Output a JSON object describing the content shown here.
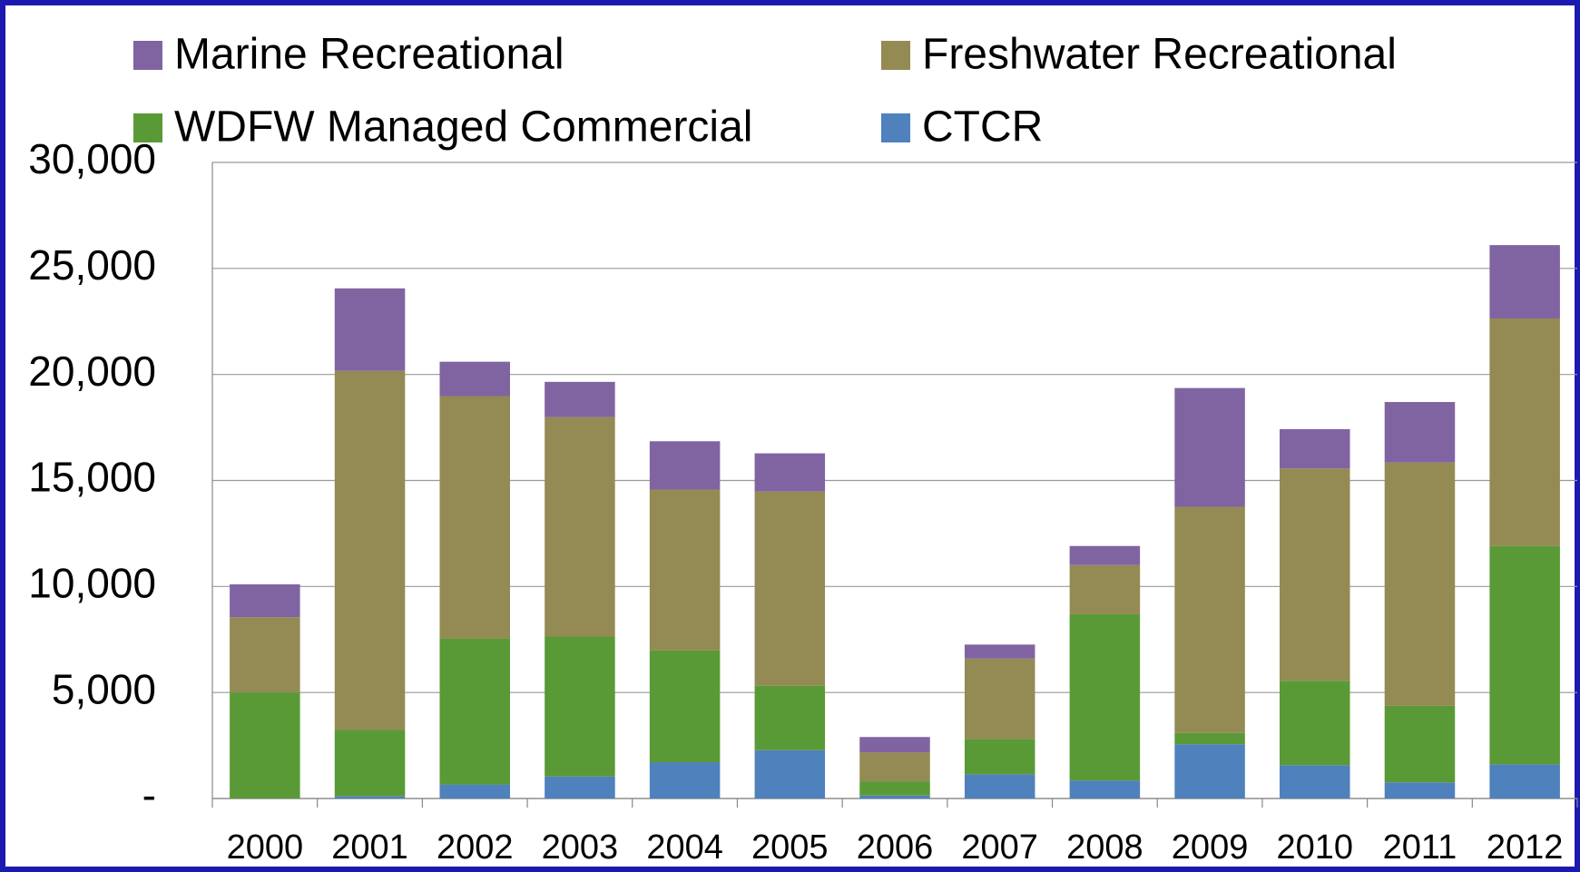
{
  "chart_data": {
    "type": "stacked_bar",
    "categories": [
      "2000",
      "2001",
      "2002",
      "2003",
      "2004",
      "2005",
      "2006",
      "2007",
      "2008",
      "2009",
      "2010",
      "2011",
      "2012"
    ],
    "series": [
      {
        "name": "CTCR",
        "color": "#4f81bd",
        "values": [
          0,
          100,
          660,
          1040,
          1710,
          2280,
          140,
          1140,
          850,
          2560,
          1570,
          760,
          1610
        ]
      },
      {
        "name": "WDFW Managed Commercial",
        "color": "#5a9a36",
        "values": [
          5000,
          3130,
          6890,
          6600,
          5270,
          3040,
          670,
          1660,
          7840,
          530,
          3980,
          3610,
          10300
        ]
      },
      {
        "name": "Freshwater Recreational",
        "color": "#948a54",
        "values": [
          3550,
          16940,
          11430,
          10350,
          7590,
          9160,
          1370,
          3800,
          2320,
          10670,
          10020,
          11480,
          10730
        ]
      },
      {
        "name": "Marine Recreational",
        "color": "#8064a2",
        "values": [
          1550,
          3890,
          1620,
          1660,
          2280,
          1800,
          720,
          660,
          900,
          5600,
          1850,
          2850,
          3460
        ]
      }
    ],
    "ylim": [
      0,
      30000
    ],
    "yticks": [
      {
        "value": 0,
        "label": "-"
      },
      {
        "value": 5000,
        "label": "5,000"
      },
      {
        "value": 10000,
        "label": "10,000"
      },
      {
        "value": 15000,
        "label": "15,000"
      },
      {
        "value": 20000,
        "label": "20,000"
      },
      {
        "value": 25000,
        "label": "25,000"
      },
      {
        "value": 30000,
        "label": "30,000"
      }
    ],
    "grid": true,
    "legend": "top"
  }
}
